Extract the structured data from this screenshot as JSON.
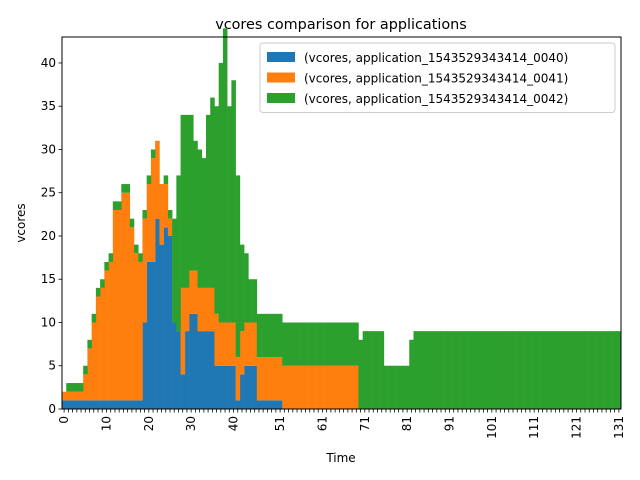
{
  "chart_data": {
    "type": "bar",
    "stacked": true,
    "title": "vcores comparison for applications",
    "xlabel": "Time",
    "ylabel": "vcores",
    "xlim": [
      0,
      132
    ],
    "ylim": [
      0,
      43
    ],
    "xticks": [
      0,
      1,
      2,
      3,
      4,
      5,
      6,
      7,
      8,
      9,
      10,
      11,
      12,
      13,
      14,
      15,
      16,
      17,
      18,
      19,
      20,
      21,
      22,
      23,
      24,
      25,
      26,
      27,
      28,
      29,
      30,
      31,
      32,
      33,
      34,
      35,
      36,
      37,
      38,
      39,
      40,
      41,
      42,
      43,
      44,
      45,
      46,
      47,
      48,
      49,
      50,
      51,
      52,
      53,
      54,
      55,
      56,
      57,
      58,
      59,
      60,
      61,
      62,
      63,
      64,
      65,
      66,
      67,
      68,
      69,
      70,
      71,
      72,
      73,
      74,
      75,
      76,
      77,
      78,
      79,
      80,
      81,
      82,
      83,
      84,
      85,
      86,
      87,
      88,
      89,
      90,
      91,
      92,
      93,
      94,
      95,
      96,
      97,
      98,
      99,
      100,
      101,
      102,
      103,
      104,
      105,
      106,
      107,
      108,
      109,
      110,
      111,
      112,
      113,
      114,
      115,
      116,
      117,
      118,
      119,
      120,
      121,
      122,
      123,
      124,
      125,
      126,
      127,
      128,
      129,
      130,
      131
    ],
    "xtick_labels_shown": [
      "0",
      "10",
      "20",
      "30",
      "40",
      "51",
      "61",
      "71",
      "81",
      "91",
      "101",
      "111",
      "121",
      "131"
    ],
    "yticks": [
      0,
      5,
      10,
      15,
      20,
      25,
      30,
      35,
      40
    ],
    "grid": false,
    "legend_position": "top-right",
    "x": [
      0,
      1,
      2,
      3,
      4,
      5,
      6,
      7,
      8,
      9,
      10,
      11,
      12,
      13,
      14,
      15,
      16,
      17,
      18,
      19,
      20,
      21,
      22,
      23,
      24,
      25,
      26,
      27,
      28,
      29,
      30,
      31,
      32,
      33,
      34,
      35,
      36,
      37,
      38,
      39,
      40,
      41,
      42,
      43,
      44,
      45,
      46,
      47,
      48,
      49,
      50,
      51,
      52,
      53,
      54,
      55,
      56,
      57,
      58,
      59,
      60,
      61,
      62,
      63,
      64,
      65,
      66,
      67,
      68,
      69,
      70,
      71,
      72,
      73,
      74,
      75,
      76,
      77,
      78,
      79,
      80,
      81,
      82,
      83,
      84,
      85,
      86,
      87,
      88,
      89,
      90,
      91,
      92,
      93,
      94,
      95,
      96,
      97,
      98,
      99,
      100,
      101,
      102,
      103,
      104,
      105,
      106,
      107,
      108,
      109,
      110,
      111,
      112,
      113,
      114,
      115,
      116,
      117,
      118,
      119,
      120,
      121,
      122,
      123,
      124,
      125,
      126,
      127,
      128,
      129,
      130,
      131
    ],
    "series": [
      {
        "name": "(vcores, application_1543529343414_0040)",
        "color": "#1f77b4",
        "values": [
          1,
          1,
          1,
          1,
          1,
          1,
          1,
          1,
          1,
          1,
          1,
          1,
          1,
          1,
          1,
          1,
          1,
          1,
          1,
          10,
          17,
          17,
          22,
          19,
          21,
          20,
          10,
          9,
          4,
          9,
          11,
          11,
          9,
          9,
          9,
          9,
          5,
          5,
          5,
          5,
          5,
          1,
          4,
          5,
          5,
          5,
          1,
          1,
          1,
          1,
          1,
          1,
          0,
          0,
          0,
          0,
          0,
          0,
          0,
          0,
          0,
          0,
          0,
          0,
          0,
          0,
          0,
          0,
          0,
          0,
          0,
          0,
          0,
          0,
          0,
          0,
          0,
          0,
          0,
          0,
          0,
          0,
          0,
          0,
          0,
          0,
          0,
          0,
          0,
          0,
          0,
          0,
          0,
          0,
          0,
          0,
          0,
          0,
          0,
          0,
          0,
          0,
          0,
          0,
          0,
          0,
          0,
          0,
          0,
          0,
          0,
          0,
          0,
          0,
          0,
          0,
          0,
          0,
          0,
          0,
          0,
          0,
          0,
          0,
          0,
          0,
          0,
          0,
          0,
          0,
          0,
          0
        ]
      },
      {
        "name": "(vcores, application_1543529343414_0041)",
        "color": "#ff7f0e",
        "values": [
          1,
          1,
          1,
          1,
          1,
          3,
          6,
          9,
          12,
          13,
          15,
          16,
          22,
          22,
          24,
          24,
          20,
          17,
          16,
          12,
          9,
          12,
          9,
          7,
          5,
          2,
          0,
          0,
          10,
          5,
          5,
          5,
          5,
          5,
          5,
          5,
          6,
          5,
          5,
          5,
          5,
          5,
          5,
          5,
          5,
          5,
          5,
          5,
          5,
          5,
          5,
          5,
          5,
          5,
          5,
          5,
          5,
          5,
          5,
          5,
          5,
          5,
          5,
          5,
          5,
          5,
          5,
          5,
          5,
          5,
          0,
          0,
          0,
          0,
          0,
          0,
          0,
          0,
          0,
          0,
          0,
          0,
          0,
          0,
          0,
          0,
          0,
          0,
          0,
          0,
          0,
          0,
          0,
          0,
          0,
          0,
          0,
          0,
          0,
          0,
          0,
          0,
          0,
          0,
          0,
          0,
          0,
          0,
          0,
          0,
          0,
          0,
          0,
          0,
          0,
          0,
          0,
          0,
          0,
          0,
          0,
          0,
          0,
          0,
          0,
          0,
          0,
          0,
          0,
          0,
          0,
          0
        ]
      },
      {
        "name": "(vcores, application_1543529343414_0042)",
        "color": "#2ca02c",
        "values": [
          0,
          1,
          1,
          1,
          1,
          1,
          1,
          1,
          1,
          1,
          1,
          1,
          1,
          1,
          1,
          1,
          1,
          1,
          1,
          1,
          1,
          1,
          0,
          0,
          1,
          1,
          12,
          18,
          20,
          20,
          18,
          15,
          16,
          15,
          20,
          22,
          24,
          30,
          34,
          25,
          28,
          21,
          10,
          8,
          5,
          5,
          5,
          5,
          5,
          5,
          5,
          5,
          5,
          5,
          5,
          5,
          5,
          5,
          5,
          5,
          5,
          5,
          5,
          5,
          5,
          5,
          5,
          5,
          5,
          5,
          8,
          9,
          9,
          9,
          9,
          9,
          5,
          5,
          5,
          5,
          5,
          5,
          8,
          9,
          9,
          9,
          9,
          9,
          9,
          9,
          9,
          9,
          9,
          9,
          9,
          9,
          9,
          9,
          9,
          9,
          9,
          9,
          9,
          9,
          9,
          9,
          9,
          9,
          9,
          9,
          9,
          9,
          9,
          9,
          9,
          9,
          9,
          9,
          9,
          9,
          9,
          9,
          9,
          9,
          9,
          9,
          9,
          9,
          9,
          9,
          9,
          9
        ]
      }
    ]
  }
}
